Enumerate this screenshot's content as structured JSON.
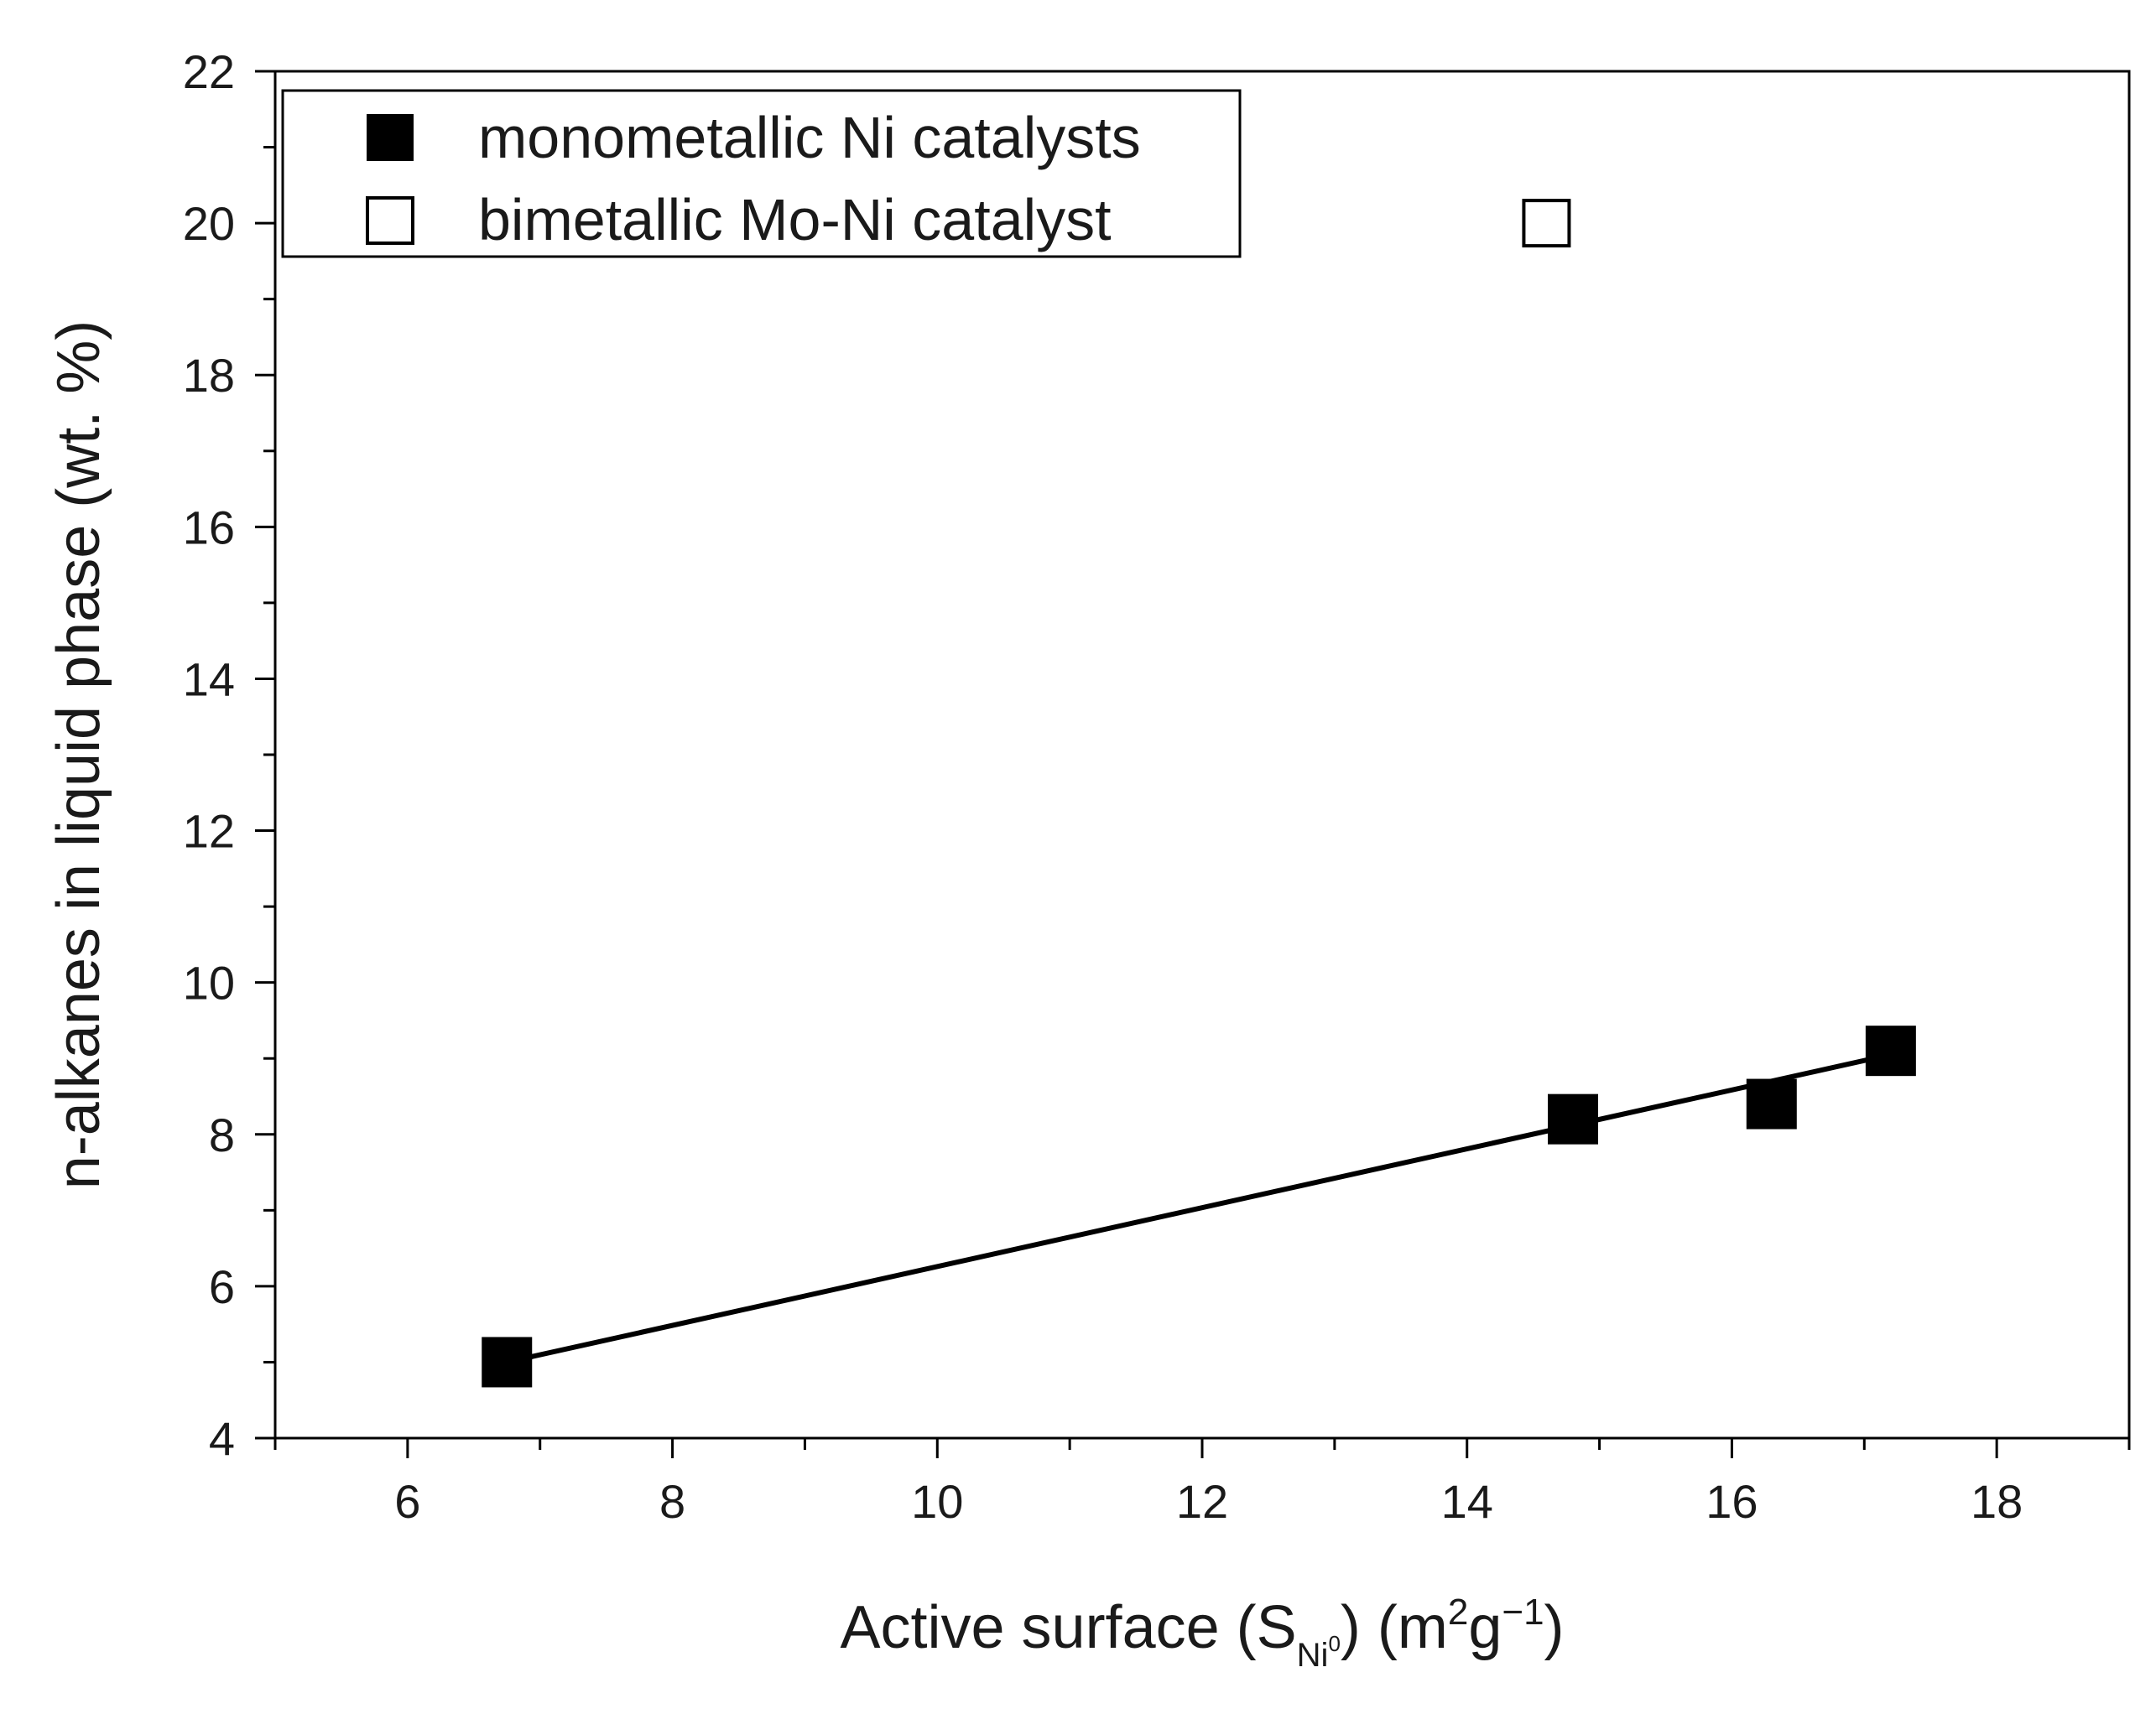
{
  "chart_data": {
    "type": "scatter",
    "title": "",
    "xlabel": {
      "main": "Active surface (S",
      "sub": "Ni",
      "subsup": "0",
      "mid": ") (m",
      "sup1": "2",
      "g": "g",
      "sup2": "−1",
      "end": ")"
    },
    "ylabel": "n-alkanes in liquid phase (wt. %)",
    "xlim": [
      5,
      19
    ],
    "ylim": [
      4,
      22
    ],
    "xticks": [
      6,
      8,
      10,
      12,
      14,
      16,
      18
    ],
    "yticks": [
      4,
      6,
      8,
      10,
      12,
      14,
      16,
      18,
      20,
      22
    ],
    "grid": false,
    "legend_position": "top-left",
    "series": [
      {
        "name": "monometallic Ni catalysts",
        "marker": "filled-square",
        "color": "#000000",
        "points": [
          {
            "x": 6.75,
            "y": 5.0
          },
          {
            "x": 14.8,
            "y": 8.2
          },
          {
            "x": 16.3,
            "y": 8.4
          },
          {
            "x": 17.2,
            "y": 9.1
          }
        ]
      },
      {
        "name": "bimetallic Mo-Ni catalyst",
        "marker": "open-square",
        "color": "#000000",
        "points": [
          {
            "x": 14.6,
            "y": 20.0
          }
        ]
      }
    ],
    "fit_line": {
      "series": "monometallic Ni catalysts",
      "x": [
        6.75,
        17.2
      ],
      "y": [
        5.0,
        9.05
      ]
    }
  }
}
